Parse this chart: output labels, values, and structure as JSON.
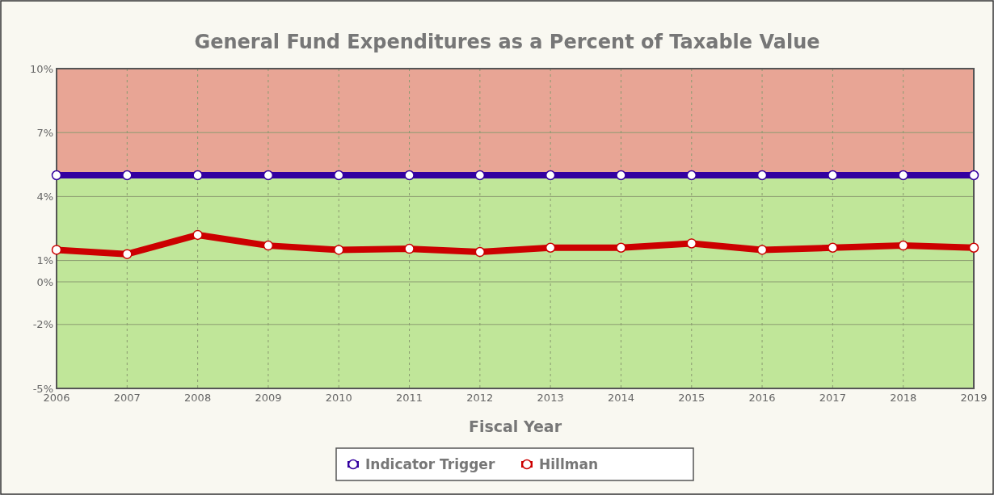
{
  "chart_data": {
    "type": "line",
    "title": "General Fund Expenditures as a Percent of Taxable Value",
    "xlabel": "Fiscal Year",
    "x": [
      2006,
      2007,
      2008,
      2009,
      2010,
      2011,
      2012,
      2013,
      2014,
      2015,
      2016,
      2017,
      2018,
      2019
    ],
    "xlim": [
      2006,
      2019
    ],
    "xticks": [
      2006,
      2007,
      2008,
      2009,
      2010,
      2011,
      2012,
      2013,
      2014,
      2015,
      2016,
      2017,
      2018,
      2019
    ],
    "ylim": [
      -5,
      10
    ],
    "yticks": [
      {
        "value": -5,
        "label": "-5%"
      },
      {
        "value": -2,
        "label": "-2%"
      },
      {
        "value": 0,
        "label": "0%"
      },
      {
        "value": 1,
        "label": "1%"
      },
      {
        "value": 4,
        "label": "4%"
      },
      {
        "value": 7,
        "label": "7%"
      },
      {
        "value": 10,
        "label": "10%"
      }
    ],
    "series": [
      {
        "name": "Indicator Trigger",
        "color": "#3300a0",
        "values": [
          5,
          5,
          5,
          5,
          5,
          5,
          5,
          5,
          5,
          5,
          5,
          5,
          5,
          5
        ]
      },
      {
        "name": "Hillman",
        "color": "#cc0000",
        "values": [
          1.5,
          1.3,
          2.2,
          1.7,
          1.5,
          1.55,
          1.4,
          1.6,
          1.6,
          1.8,
          1.5,
          1.6,
          1.7,
          1.6
        ]
      }
    ],
    "bands": [
      {
        "axis": "y",
        "from": 5,
        "to": 10,
        "color": "#e8a595"
      },
      {
        "axis": "y",
        "from": -5,
        "to": 5,
        "color": "#c0e699"
      }
    ],
    "grid": true,
    "legend": "bottom",
    "marker": "circle",
    "line_style": "solid"
  }
}
